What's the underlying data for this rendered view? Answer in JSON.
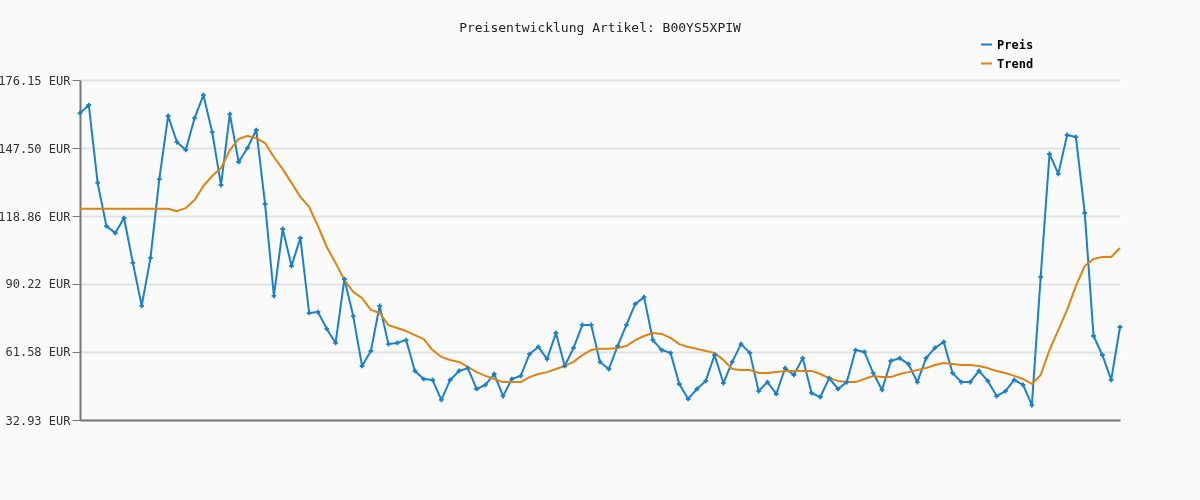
{
  "chart_data": {
    "type": "line",
    "title": "Preisentwicklung Artikel: B00YS5XPIW",
    "categories": [
      null,
      null,
      null,
      null,
      null,
      null,
      null,
      null,
      null,
      null,
      null,
      null,
      null,
      null,
      null,
      null,
      null,
      null,
      null,
      null,
      null,
      null,
      null,
      null,
      null,
      null,
      null,
      null,
      null,
      null,
      null,
      null,
      null,
      null,
      null,
      null,
      null,
      null,
      null,
      null,
      null,
      null,
      null,
      null,
      null,
      null,
      null,
      null,
      null,
      null,
      null,
      null,
      null,
      null,
      null,
      null,
      null,
      null,
      null,
      null,
      null,
      null,
      null,
      null,
      null,
      null,
      null,
      null,
      null,
      null,
      null,
      null,
      null,
      null,
      null,
      null,
      null,
      null,
      null,
      null,
      null,
      null,
      null,
      null,
      null,
      null,
      null,
      null,
      null,
      null,
      null,
      null,
      null,
      null,
      null,
      null,
      null,
      null,
      null,
      null,
      null,
      null,
      null,
      null,
      null,
      null,
      null,
      null,
      null,
      null,
      null,
      null,
      null,
      null,
      null,
      null,
      null,
      null,
      null
    ],
    "series": [
      {
        "name": "Preis",
        "color": "#1a80cc",
        "marker": "cross",
        "values": [
          162.2,
          165.6,
          132.8,
          114.6,
          111.7,
          118.0,
          99.1,
          81.0,
          101.2,
          134.4,
          161.0,
          150.0,
          146.7,
          160.1,
          169.8,
          154.2,
          131.9,
          161.8,
          141.6,
          147.5,
          155.1,
          123.9,
          85.2,
          113.4,
          97.8,
          109.6,
          78.0,
          78.4,
          71.3,
          65.4,
          92.3,
          76.7,
          55.7,
          62.0,
          81.0,
          64.9,
          65.4,
          66.6,
          53.6,
          50.2,
          49.8,
          41.4,
          49.8,
          53.6,
          54.8,
          46.0,
          47.7,
          52.3,
          43.0,
          50.2,
          51.5,
          60.7,
          63.7,
          58.6,
          69.6,
          55.7,
          63.3,
          73.0,
          73.0,
          57.4,
          54.4,
          64.1,
          73.0,
          81.8,
          84.7,
          66.6,
          62.4,
          61.2,
          48.1,
          41.8,
          46.0,
          49.4,
          60.3,
          48.5,
          57.4,
          64.9,
          61.2,
          45.1,
          48.9,
          43.9,
          54.8,
          51.9,
          59.0,
          44.3,
          42.6,
          50.6,
          46.0,
          48.9,
          62.4,
          61.6,
          52.7,
          45.6,
          57.8,
          59.0,
          56.5,
          48.9,
          59.0,
          63.3,
          65.8,
          52.7,
          48.9,
          48.9,
          53.6,
          49.4,
          43.0,
          45.1,
          49.8,
          47.7,
          39.2,
          93.2,
          145.0,
          136.6,
          153.0,
          152.1,
          120.1,
          68.3,
          60.3,
          49.8,
          72.1
        ]
      },
      {
        "name": "Trend",
        "color": "#e0820f",
        "marker": "none",
        "values": [
          121.9,
          121.9,
          121.9,
          121.9,
          121.9,
          121.9,
          121.9,
          121.9,
          121.9,
          121.9,
          121.9,
          120.9,
          122.2,
          125.6,
          131.5,
          135.7,
          139.1,
          146.6,
          151.3,
          152.6,
          151.7,
          149.6,
          143.7,
          138.6,
          132.8,
          126.9,
          122.7,
          114.6,
          105.8,
          99.1,
          91.9,
          86.9,
          84.3,
          79.3,
          78.0,
          72.9,
          71.7,
          70.4,
          68.7,
          67.0,
          62.4,
          59.5,
          58.2,
          57.4,
          55.3,
          53.1,
          51.5,
          50.2,
          48.9,
          48.9,
          48.9,
          51.0,
          52.3,
          53.1,
          54.4,
          55.7,
          57.4,
          60.3,
          62.4,
          62.9,
          62.9,
          63.3,
          64.1,
          66.6,
          68.3,
          69.6,
          69.2,
          67.5,
          64.9,
          63.7,
          62.9,
          62.0,
          61.2,
          58.2,
          54.4,
          54.0,
          54.0,
          52.7,
          52.7,
          53.1,
          53.6,
          53.6,
          53.6,
          53.6,
          52.3,
          50.6,
          49.4,
          48.9,
          48.9,
          50.2,
          51.5,
          51.0,
          51.0,
          52.3,
          53.1,
          54.0,
          54.8,
          56.1,
          56.9,
          56.5,
          56.1,
          56.1,
          55.7,
          54.8,
          53.6,
          52.7,
          51.5,
          50.2,
          48.1,
          51.9,
          62.4,
          70.8,
          79.3,
          89.4,
          97.8,
          100.8,
          101.6,
          101.6,
          105.4
        ]
      }
    ],
    "ylim": [
      32.93,
      176.15
    ],
    "yticks": [
      {
        "value": 32.93,
        "label": "32.93 EUR"
      },
      {
        "value": 61.58,
        "label": "61.58 EUR"
      },
      {
        "value": 90.22,
        "label": "90.22 EUR"
      },
      {
        "value": 118.86,
        "label": "118.86 EUR"
      },
      {
        "value": 147.5,
        "label": "147.50 EUR"
      },
      {
        "value": 176.15,
        "label": "176.15 EUR"
      }
    ],
    "grid": "y",
    "legend": "top right",
    "tick_labels": "y",
    "line_style": "solid"
  }
}
